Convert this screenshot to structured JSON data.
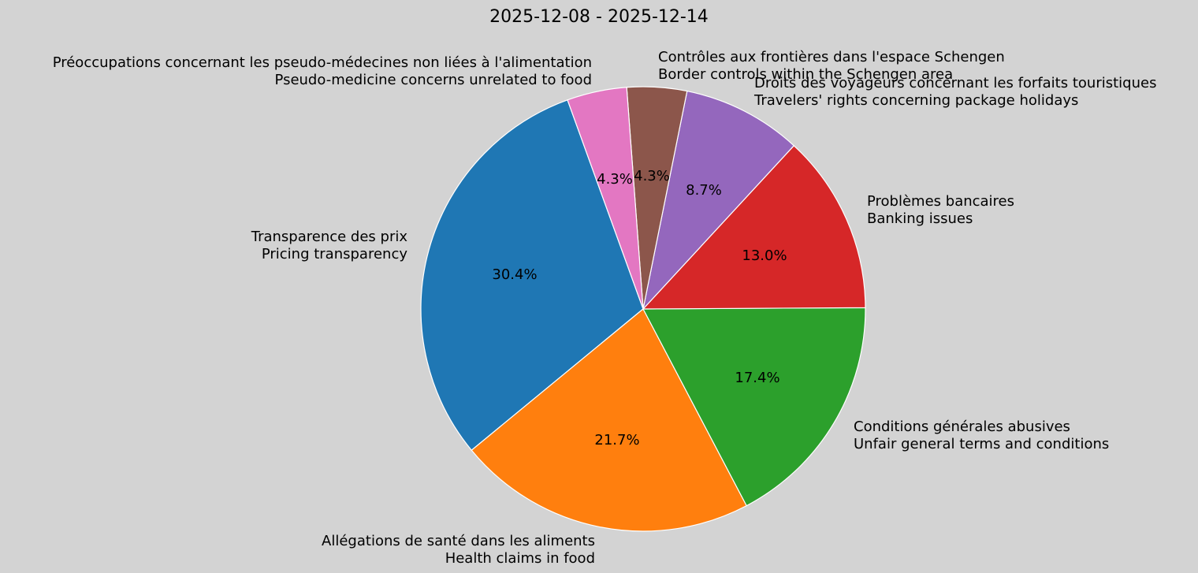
{
  "chart_data": {
    "type": "pie",
    "title": "2025-12-08 - 2025-12-14",
    "start_angle_deg": 109.9,
    "direction": "counterclockwise",
    "center": [
      816,
      392
    ],
    "radius": 282,
    "slices": [
      {
        "label_fr": "Transparence des prix",
        "label_en": "Pricing transparency",
        "value": 7,
        "percent": "30.4%",
        "color": "#1f77b4",
        "label_anchor": "end"
      },
      {
        "label_fr": "Allégations de santé dans les aliments",
        "label_en": "Health claims in food",
        "value": 5,
        "percent": "21.7%",
        "color": "#ff7f0e",
        "label_anchor": "end"
      },
      {
        "label_fr": "Conditions générales abusives",
        "label_en": "Unfair general terms and conditions",
        "value": 4,
        "percent": "17.4%",
        "color": "#2ca02c",
        "label_anchor": "start"
      },
      {
        "label_fr": "Problèmes bancaires",
        "label_en": "Banking issues",
        "value": 3,
        "percent": "13.0%",
        "color": "#d62728",
        "label_anchor": "start"
      },
      {
        "label_fr": "Droits des voyageurs concernant les forfaits touristiques",
        "label_en": "Travelers' rights concerning package holidays",
        "value": 2,
        "percent": "8.7%",
        "color": "#9467bd",
        "label_anchor": "start"
      },
      {
        "label_fr": "Contrôles aux frontières dans l'espace Schengen",
        "label_en": "Border controls within the Schengen area",
        "value": 1,
        "percent": "4.3%",
        "color": "#8c564b",
        "label_anchor": "start"
      },
      {
        "label_fr": "Préoccupations concernant les pseudo-médecines non liées à l'alimentation",
        "label_en": "Pseudo-medicine concerns unrelated to food",
        "value": 1,
        "percent": "4.3%",
        "color": "#e377c2",
        "label_anchor": "end"
      }
    ],
    "label_positions": [
      [
        517,
        300
      ],
      [
        755,
        686
      ],
      [
        1083,
        541
      ],
      [
        1100,
        255
      ],
      [
        957,
        105
      ],
      [
        835,
        72
      ],
      [
        751,
        79
      ]
    ],
    "pct_positions": [
      [
        653,
        348
      ],
      [
        783,
        558
      ],
      [
        961,
        479
      ],
      [
        970,
        324
      ],
      [
        893,
        241
      ],
      [
        827,
        223
      ],
      [
        780,
        227
      ]
    ]
  }
}
